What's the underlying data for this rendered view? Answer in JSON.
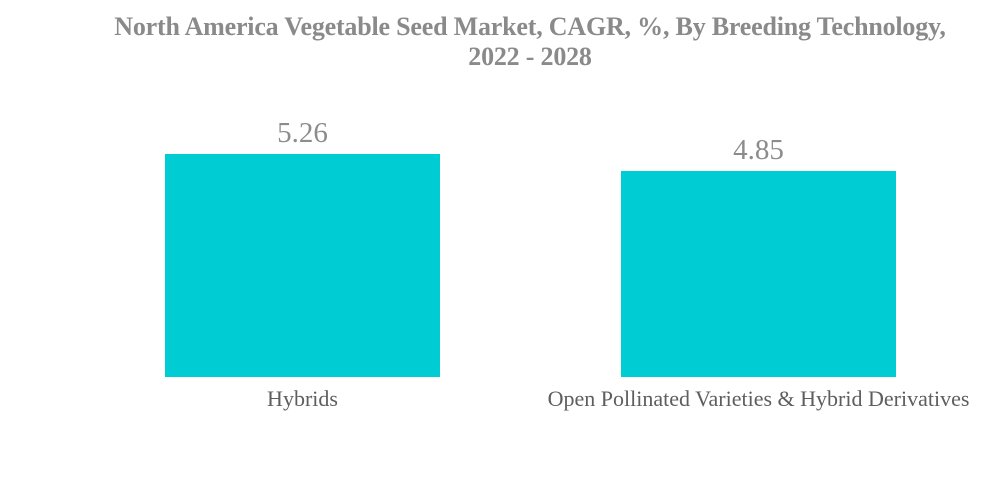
{
  "title": {
    "line1": "North America Vegetable Seed Market, CAGR, %, By Breeding Technology,",
    "line2": "2022 - 2028"
  },
  "chart_data": {
    "type": "bar",
    "title": "North America Vegetable Seed Market, CAGR, %, By Breeding Technology, 2022 - 2028",
    "categories": [
      "Hybrids",
      "Open Pollinated Varieties & Hybrid Derivatives"
    ],
    "values": [
      5.26,
      4.85
    ],
    "value_labels": [
      "5.26",
      "4.85"
    ],
    "xlabel": "",
    "ylabel": "",
    "ylim": [
      0,
      5.26
    ],
    "grid": false,
    "axes_visible": false,
    "legend": "none",
    "data_labels_position": "above-bar",
    "colors": {
      "bar": "#00cdd3",
      "title_text": "#8a8a8a",
      "value_text": "#8c8c8c",
      "category_text": "#5e5e5e",
      "background": "#ffffff"
    }
  }
}
